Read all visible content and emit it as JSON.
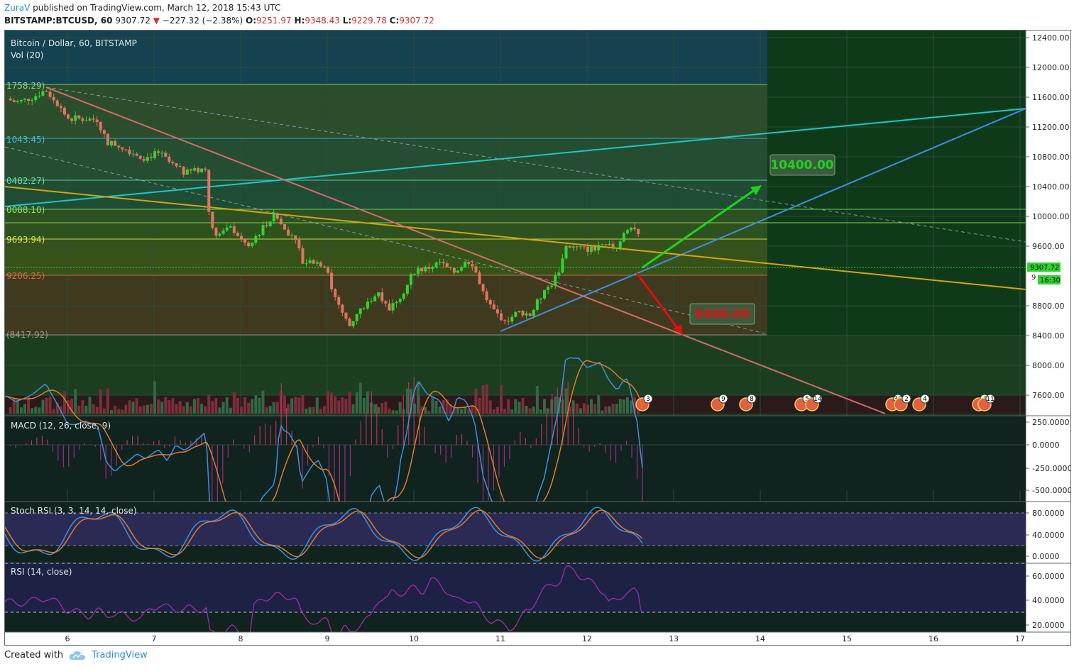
{
  "header": {
    "author": "ZuraV",
    "published_text": " published on TradingView.com, March 12, 2018 15:43 UTC",
    "symbol": "BITSTAMP:BTCUSD, 60",
    "last": "9307.72",
    "change_arrow": "▼",
    "change": "−227.32 (−2.38%)",
    "o_label": "O:",
    "o": "9251.97",
    "h_label": "H:",
    "h": "9348.43",
    "l_label": "L:",
    "l": "9229.78",
    "c_label": "C:",
    "c": "9307.72"
  },
  "main_pane": {
    "title": "Bitcoin / Dollar, 60, BITSTAMP",
    "vol_label": "Vol (20)",
    "price_tag": "9307.72",
    "time_tag": "16:30",
    "partial_tag": "9",
    "target_up": "10400.00",
    "target_down": "8400.00",
    "fib_levels": [
      "1758.29)",
      "1043.45)",
      "0482.27)",
      "0088.10)",
      "9693.94)",
      "9206.25)",
      "(8417.92)"
    ],
    "event_counts": [
      "3",
      "9",
      "8",
      "5",
      "14",
      "36",
      "2",
      "4",
      "4",
      "11"
    ]
  },
  "macd_pane": {
    "title": "MACD (12, 26, close, 9)"
  },
  "stoch_pane": {
    "title": "Stoch RSI (3, 3, 14, 14, close)"
  },
  "rsi_pane": {
    "title": "RSI (14, close)"
  },
  "footer": {
    "created_with": "Created with",
    "brand": "TradingView"
  },
  "colors": {
    "up_candle": "#2fd52f",
    "down_candle": "#e0745e",
    "target_up": "#1fd21f",
    "target_down": "#e01010",
    "cyan_line": "#1cc8c8",
    "blue_line": "#3f8ee0",
    "yellow_line": "#d4a40e",
    "salmon_line": "#d46a6a"
  },
  "chart_data": {
    "type": "candlestick",
    "x_ticks": [
      "6",
      "7",
      "8",
      "9",
      "10",
      "11",
      "12",
      "13",
      "14",
      "15",
      "16",
      "17"
    ],
    "price_ticks": [
      "12400.00",
      "12000.00",
      "11600.00",
      "11200.00",
      "10800.00",
      "10400.00",
      "10000.00",
      "9600.00",
      "8800.00",
      "8400.00",
      "8000.00",
      "7600.00"
    ],
    "price_range": [
      7300,
      12550
    ],
    "macd_ticks": [
      "250.0000",
      "0.0000",
      "-250.0000",
      "-500.0000"
    ],
    "stoch_ticks": [
      "80.0000",
      "40.0000",
      "0.0000"
    ],
    "rsi_ticks": [
      "60.0000",
      "40.0000",
      "20.0000"
    ],
    "close_path": [
      [
        5.3,
        11580
      ],
      [
        5.4,
        11530
      ],
      [
        5.5,
        11560
      ],
      [
        5.6,
        11600
      ],
      [
        5.75,
        11700
      ],
      [
        5.9,
        11480
      ],
      [
        6.0,
        11320
      ],
      [
        6.15,
        11310
      ],
      [
        6.35,
        11300
      ],
      [
        6.45,
        11000
      ],
      [
        6.6,
        10950
      ],
      [
        6.75,
        10860
      ],
      [
        6.9,
        10780
      ],
      [
        7.05,
        10860
      ],
      [
        7.2,
        10700
      ],
      [
        7.35,
        10580
      ],
      [
        7.5,
        10620
      ],
      [
        7.6,
        10650
      ],
      [
        7.65,
        9830
      ],
      [
        7.75,
        9760
      ],
      [
        7.9,
        9850
      ],
      [
        8.0,
        9700
      ],
      [
        8.1,
        9580
      ],
      [
        8.25,
        9850
      ],
      [
        8.4,
        10020
      ],
      [
        8.5,
        9830
      ],
      [
        8.65,
        9700
      ],
      [
        8.7,
        9380
      ],
      [
        8.85,
        9400
      ],
      [
        9.0,
        9330
      ],
      [
        9.05,
        9020
      ],
      [
        9.15,
        8780
      ],
      [
        9.25,
        8520
      ],
      [
        9.35,
        8700
      ],
      [
        9.5,
        8880
      ],
      [
        9.6,
        9000
      ],
      [
        9.7,
        8720
      ],
      [
        9.8,
        8880
      ],
      [
        9.9,
        9020
      ],
      [
        10.0,
        9270
      ],
      [
        10.15,
        9300
      ],
      [
        10.3,
        9380
      ],
      [
        10.45,
        9240
      ],
      [
        10.6,
        9380
      ],
      [
        10.7,
        9300
      ],
      [
        10.8,
        8980
      ],
      [
        10.9,
        8760
      ],
      [
        11.0,
        8650
      ],
      [
        11.1,
        8620
      ],
      [
        11.2,
        8720
      ],
      [
        11.35,
        8680
      ],
      [
        11.45,
        8900
      ],
      [
        11.6,
        9110
      ],
      [
        11.7,
        9320
      ],
      [
        11.75,
        9620
      ],
      [
        11.85,
        9580
      ],
      [
        12.0,
        9560
      ],
      [
        12.15,
        9580
      ],
      [
        12.35,
        9600
      ],
      [
        12.45,
        9860
      ],
      [
        12.55,
        9850
      ],
      [
        12.6,
        9700
      ],
      [
        12.62,
        9307
      ]
    ],
    "target_up_value": 10400,
    "target_down_value": 8400
  }
}
